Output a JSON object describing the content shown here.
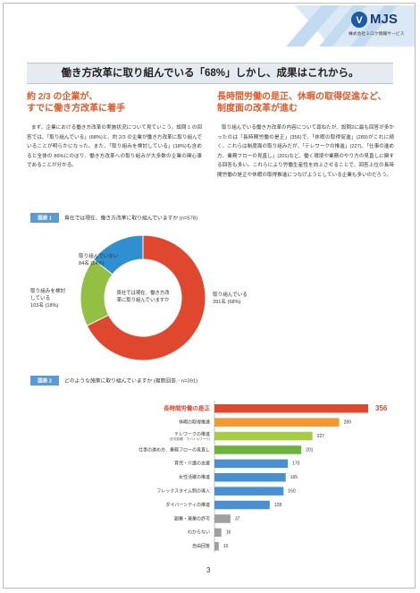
{
  "header": {
    "logo": "MJS",
    "company": "株式会社ミロク情報サービス"
  },
  "title": "働き方改革に取り組んでいる「68%」しかし、成果はこれから。",
  "sections": [
    {
      "heading": [
        "約 2/3 の企業が、",
        "すでに働き方改革に着手"
      ],
      "body": "まず、企業における働き方改革の実施状況について見ていこう。設問 1 の回答では、「取り組んでいる」(68%)と、約 2/3 の企業が働き方改革に取り組んでいることが明らかになった。また、「取り組みを検討している」(18%)も含めると全体の 86%にのぼり、働き方改革への取り組みが大多数の企業の関心事であることが分かる。"
    },
    {
      "heading": [
        "長時間労働の是正、休暇の取得促進など、",
        "制度面の改革が進む"
      ],
      "body": "取り組んでいる働き方改革の内容について尋ねたが、設問2に最も回答が多かったのは「長時間労働の是正」(356)で、「休暇の取得促進」(289)がこれに続く。これらは制度面の取り組みだが、「テレワークの推進」(227)、「仕事の進め方、業務フローの見直し」(201)など、働く環境や業務のやり方の見直しに関する回答も多い。これらにより労働生産性を向上させることで、回答上位の長時間労働の是正や休暇の取得推進につなげようとしている企業も多いのだろう。"
    }
  ],
  "chart_data": [
    {
      "type": "donut",
      "figure_label": "図表 1",
      "title": "貴社では現在、働き方改革に取り組んでいますか (n=578)",
      "center_text": "貴社では現在、働き方改革に取り組んでいますか",
      "categories": [
        "取り組んでいる",
        "取り組みを検討している",
        "取り組んでいない"
      ],
      "values": [
        391,
        103,
        84
      ],
      "value_labels": [
        "391名",
        "103名",
        "84名"
      ],
      "percents": [
        68,
        18,
        14
      ],
      "percent_labels": [
        "(68%)",
        "(18%)",
        "(14%)"
      ],
      "colors": [
        "#e0472f",
        "#93c042",
        "#2f8fcf"
      ]
    },
    {
      "type": "bar",
      "figure_label": "図表 2",
      "title": "どのような施策に取り組んでいますか (複数回答／n=391)",
      "categories": [
        "長時間労働の是正",
        "休暇の取得推進",
        "テレワークの推進",
        "仕事の進め方、業務フローの見直し",
        "育児・介護の支援",
        "女性活躍の推進",
        "フレックスタイム制の導入",
        "ダイバーシティの推進",
        "副業・兼業の許可",
        "わからない",
        "自由回答"
      ],
      "subcategories": [
        null,
        null,
        "(在宅勤務・モバイルワーク)",
        null,
        null,
        null,
        null,
        null,
        null,
        null,
        null
      ],
      "values": [
        356,
        289,
        227,
        201,
        170,
        165,
        160,
        128,
        37,
        16,
        10
      ],
      "colors": [
        "#e0472f",
        "#f29a2e",
        "#a9cc45",
        "#6fb240",
        "#4a8fd0",
        "#4a8fd0",
        "#4a8fd0",
        "#4a8fd0",
        "#a0a0a0",
        "#a0a0a0",
        "#a0a0a0"
      ]
    }
  ],
  "page_number": "3"
}
